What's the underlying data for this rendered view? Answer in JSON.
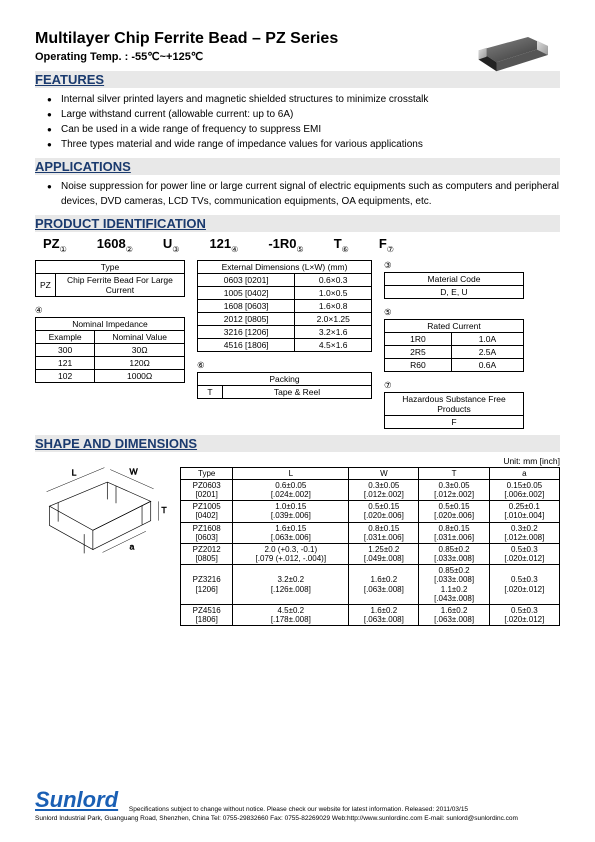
{
  "title": "Multilayer Chip Ferrite Bead – PZ Series",
  "subtitle": "Operating Temp. : -55℃~+125℃",
  "sections": {
    "features": "FEATURES",
    "applications": "APPLICATIONS",
    "pid": "PRODUCT IDENTIFICATION",
    "shape": "SHAPE AND DIMENSIONS"
  },
  "features": [
    "Internal silver printed layers and magnetic shielded structures to minimize crosstalk",
    "Large withstand current (allowable current: up to 6A)",
    "Can be used in a wide range of frequency to suppress EMI",
    "Three types material and wide range of impedance values for various applications"
  ],
  "applications": [
    "Noise suppression for power line or large current signal of electric equipments such as computers and peripheral devices, DVD cameras, LCD TVs, communication equipments, OA equipments, etc."
  ],
  "pid": {
    "codes": [
      "PZ",
      "1608",
      "U",
      "121",
      "-1R0",
      "T",
      "F"
    ],
    "circled": [
      "①",
      "②",
      "③",
      "④",
      "⑤",
      "⑥",
      "⑦"
    ],
    "type_table": {
      "header": "Type",
      "rows": [
        [
          "PZ",
          "Chip Ferrite Bead For Large Current"
        ]
      ]
    },
    "impedance_table": {
      "circled": "④",
      "header": "Nominal Impedance",
      "sub": [
        "Example",
        "Nominal Value"
      ],
      "rows": [
        [
          "300",
          "30Ω"
        ],
        [
          "121",
          "120Ω"
        ],
        [
          "102",
          "1000Ω"
        ]
      ]
    },
    "ext_dims_table": {
      "header": "External Dimensions (L×W) (mm)",
      "rows": [
        [
          "0603 [0201]",
          "0.6×0.3"
        ],
        [
          "1005 [0402]",
          "1.0×0.5"
        ],
        [
          "1608 [0603]",
          "1.6×0.8"
        ],
        [
          "2012 [0805]",
          "2.0×1.25"
        ],
        [
          "3216 [1206]",
          "3.2×1.6"
        ],
        [
          "4516 [1806]",
          "4.5×1.6"
        ]
      ]
    },
    "packing_table": {
      "circled": "⑥",
      "header": "Packing",
      "rows": [
        [
          "T",
          "Tape & Reel"
        ]
      ]
    },
    "material_table": {
      "circled": "③",
      "header": "Material Code",
      "rows": [
        [
          "D, E, U"
        ]
      ]
    },
    "rated_table": {
      "circled": "⑤",
      "header": "Rated Current",
      "rows": [
        [
          "1R0",
          "1.0A"
        ],
        [
          "2R5",
          "2.5A"
        ],
        [
          "R60",
          "0.6A"
        ]
      ]
    },
    "hazard_table": {
      "circled": "⑦",
      "header": "Hazardous Substance Free Products",
      "rows": [
        [
          "F"
        ]
      ]
    }
  },
  "dims": {
    "unit": "Unit: mm [inch]",
    "headers": [
      "Type",
      "L",
      "W",
      "T",
      "a"
    ],
    "rows": [
      [
        "PZ0603\n[0201]",
        "0.6±0.05\n[.024±.002]",
        "0.3±0.05\n[.012±.002]",
        "0.3±0.05\n[.012±.002]",
        "0.15±0.05\n[.006±.002]"
      ],
      [
        "PZ1005\n[0402]",
        "1.0±0.15\n[.039±.006]",
        "0.5±0.15\n[.020±.006]",
        "0.5±0.15\n[.020±.006]",
        "0.25±0.1\n[.010±.004]"
      ],
      [
        "PZ1608\n[0603]",
        "1.6±0.15\n[.063±.006]",
        "0.8±0.15\n[.031±.006]",
        "0.8±0.15\n[.031±.006]",
        "0.3±0.2\n[.012±.008]"
      ],
      [
        "PZ2012\n[0805]",
        "2.0 (+0.3, -0.1)\n[.079 (+.012, -.004)]",
        "1.25±0.2\n[.049±.008]",
        "0.85±0.2\n[.033±.008]",
        "0.5±0.3\n[.020±.012]"
      ],
      [
        "PZ3216\n[1206]",
        "3.2±0.2\n[.126±.008]",
        "1.6±0.2\n[.063±.008]",
        "0.85±0.2\n[.033±.008]\n1.1±0.2\n[.043±.008]",
        "0.5±0.3\n[.020±.012]"
      ],
      [
        "PZ4516\n[1806]",
        "4.5±0.2\n[.178±.008]",
        "1.6±0.2\n[.063±.008]",
        "1.6±0.2\n[.063±.008]",
        "0.5±0.3\n[.020±.012]"
      ]
    ]
  },
  "footer": {
    "brand": "Sunlord",
    "spec": "Specifications subject to change without notice. Please check our website for latest information.    Released: 2011/03/15",
    "addr": "Sunlord Industrial Park, Guanguang Road, Shenzhen, China Tel: 0755-29832660 Fax: 0755-82269029   Web:http://www.sunlordinc.com   E-mail: sunlord@sunlordinc.com"
  }
}
